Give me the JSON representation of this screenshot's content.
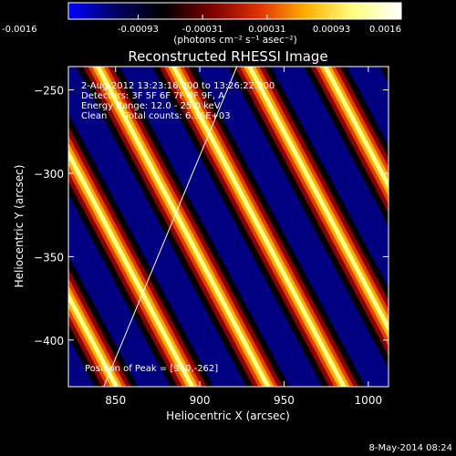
{
  "colorbar": {
    "tick_labels": [
      "-0.0016",
      "-0.00093",
      "-0.00031",
      "0.00031",
      "0.00093",
      "0.0016"
    ],
    "tick_values": [
      -0.0016,
      -0.00093,
      -0.00031,
      0.00031,
      0.00093,
      0.0016
    ],
    "range": [
      -0.0016,
      0.0016
    ],
    "units_label": "(photons cm⁻² s⁻¹ asec⁻²)",
    "colors": [
      "#0000ff",
      "#000060",
      "#000000",
      "#7a0000",
      "#e03000",
      "#ffb000",
      "#ffff80",
      "#ffffff"
    ]
  },
  "chart_data": {
    "type": "heatmap",
    "title": "Reconstructed RHESSI Image",
    "xlabel": "Heliocentric X (arcsec)",
    "ylabel": "Heliocentric Y (arcsec)",
    "xlim": [
      822,
      1012
    ],
    "ylim": [
      -428,
      -236
    ],
    "x_ticks": [
      850,
      900,
      950,
      1000
    ],
    "x_tick_labels": [
      "850",
      "900",
      "950",
      "1000"
    ],
    "y_ticks": [
      -250,
      -300,
      -350,
      -400
    ],
    "y_tick_labels": [
      "−250",
      "−300",
      "−350",
      "−400"
    ],
    "pattern": {
      "description_free": true,
      "stripe_spacing_x_arcsec": 45,
      "stripe_slope": 1.9,
      "limb_line": [
        [
          843,
          -428
        ],
        [
          922,
          -236
        ]
      ]
    },
    "annotations": [
      "2-Aug-2012 13:23:16.000 to 13:26:22.000",
      "Detectors: 3F 5F 6F 7F 8F 9F, A",
      "Energy Range: 12.0 - 25.0 keV",
      "Clean      Total counts: 6.36E+03",
      "Position of Peak = [940,-262]"
    ],
    "peak": [
      940,
      -262
    ]
  },
  "footer": {
    "timestamp": "8-May-2014 08:24"
  }
}
